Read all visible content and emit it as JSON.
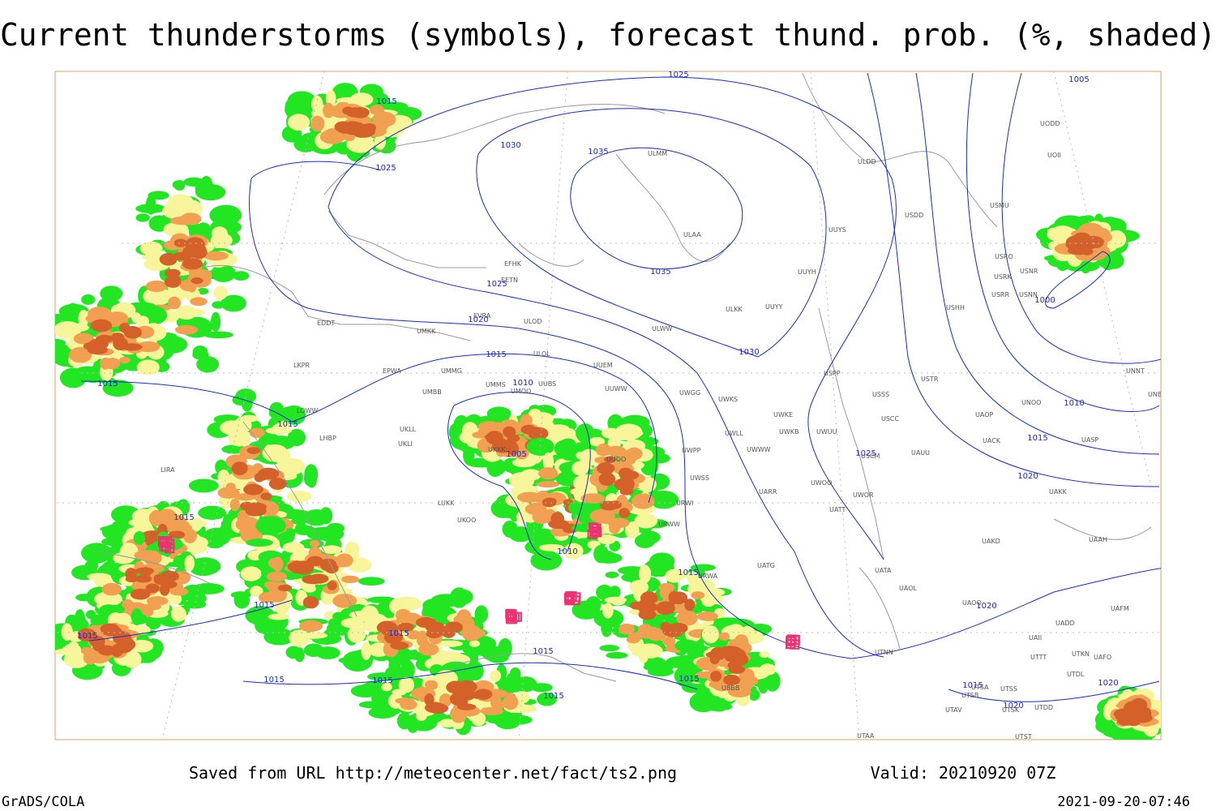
{
  "header": {
    "title": "Current thunderstorms (symbols), forecast thund. prob. (%, shaded)"
  },
  "footer": {
    "saved": "Saved from URL http://meteocenter.net/fact/ts2.png",
    "valid": "Valid: 20210920 07Z",
    "software": "GrADS/COLA",
    "timestamp": "2021-09-20-07:46"
  },
  "isobar_labels": [
    "1015",
    "1025",
    "1030",
    "1035",
    "1025",
    "1035",
    "1025",
    "1020",
    "1015",
    "1010",
    "1030",
    "1005",
    "1010",
    "1015",
    "1015",
    "1015",
    "1015",
    "1015",
    "1015",
    "1015",
    "1015",
    "1015",
    "1015",
    "1015",
    "1015",
    "1025",
    "1020",
    "1015",
    "1010",
    "1000",
    "1005",
    "1020",
    "1020",
    "1020",
    "1015"
  ],
  "station_labels": [
    "EFHK",
    "EETN",
    "EVRA",
    "ULOD",
    "UMKK",
    "EDDT",
    "ULOL",
    "UUEM",
    "EPWA",
    "UMMG",
    "LKPR",
    "UMMS",
    "UUBS",
    "UMOO",
    "UUWW",
    "UMBB",
    "LOWW",
    "UKLL",
    "UKLI",
    "LHBP",
    "UKKK",
    "UUOO",
    "LIRA",
    "LUKK",
    "UKOO",
    "ULMM",
    "ULAA",
    "UUYS",
    "UUYH",
    "ULKK",
    "UUYY",
    "ULWW",
    "USDD",
    "ULDD",
    "USMU",
    "USRO",
    "USRK",
    "USNR",
    "USRR",
    "USNN",
    "USHH",
    "UODD",
    "UOII",
    "USPP",
    "USTR",
    "USSS",
    "USCC",
    "UWGG",
    "UWKS",
    "UWKE",
    "UWKB",
    "UWUU",
    "UWLL",
    "UWWW",
    "UWPP",
    "USCM",
    "UAUU",
    "UACK",
    "UAOP",
    "UNOO",
    "UNNT",
    "UNBB",
    "UASP",
    "UWSS",
    "UARR",
    "UWOO",
    "UWOR",
    "UATT",
    "UAKK",
    "UAKD",
    "UAAH",
    "UATG",
    "UATA",
    "UAOL",
    "UAOO",
    "UAFM",
    "UADD",
    "UAII",
    "UTTT",
    "UTKN",
    "UTDL",
    "UAFO",
    "UTNN",
    "UTSA",
    "UTSS",
    "UTSB",
    "UTDD",
    "UTAV",
    "UTSK",
    "UTST",
    "UTAA",
    "UBBB",
    "URWA",
    "URWW",
    "URWI"
  ]
}
